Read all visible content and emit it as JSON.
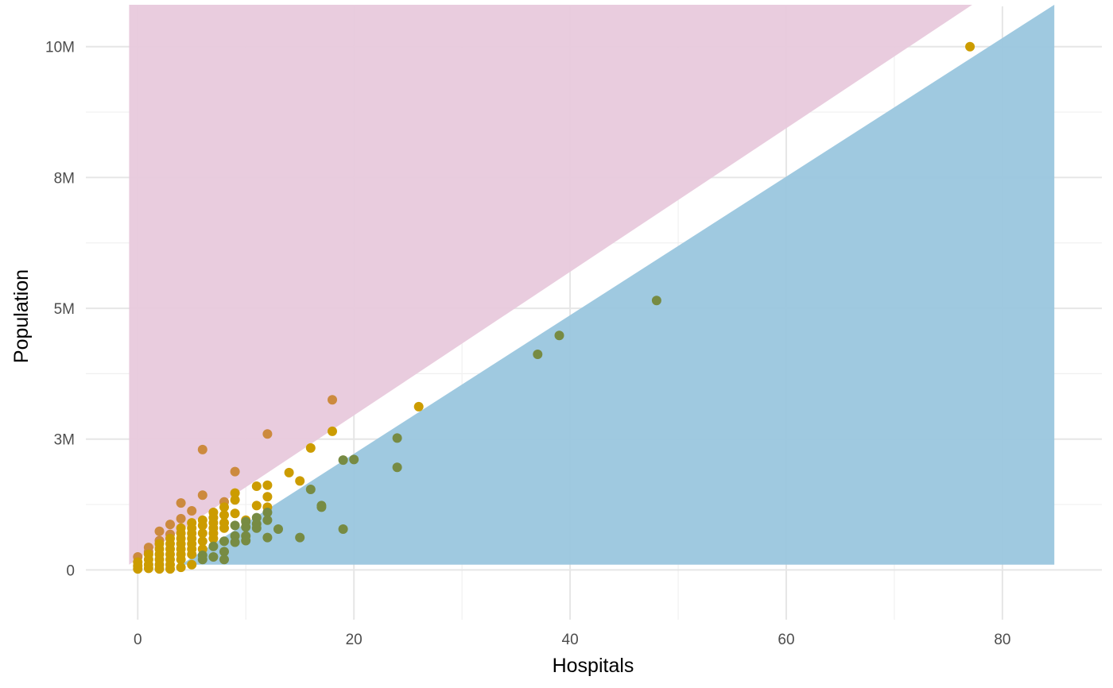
{
  "chart_data": {
    "type": "scatter",
    "title": "",
    "xlabel": "Hospitals",
    "ylabel": "Population",
    "xlim": [
      -4.8,
      89.2
    ],
    "ylim": [
      -950000,
      10770000
    ],
    "x_ticks": [
      0,
      20,
      40,
      60,
      80
    ],
    "x_tick_labels": [
      "0",
      "20",
      "40",
      "60",
      "80"
    ],
    "y_ticks": [
      0,
      2500000,
      5000000,
      7500000,
      10000000
    ],
    "y_tick_labels": [
      "0",
      "3M",
      "5M",
      "8M",
      "10M"
    ],
    "grid": true,
    "legend": "none",
    "colors": {
      "upper_region": "#e8c9dc",
      "lower_region": "#9ac6de",
      "point_above": "#cc8a3e",
      "point_mid": "#cc9c00",
      "point_below": "#778b43",
      "background": "#ffffff"
    },
    "regions": [
      {
        "name": "upper",
        "polygon": [
          [
            -0.8,
            10800000
          ],
          [
            77.2,
            10800000
          ],
          [
            -0.8,
            100000
          ]
        ]
      },
      {
        "name": "lower",
        "polygon": [
          [
            4,
            100000
          ],
          [
            84.8,
            10800000
          ],
          [
            84.8,
            100000
          ]
        ]
      }
    ],
    "series": [
      {
        "group": "above",
        "points": [
          [
            18,
            3250000
          ],
          [
            12,
            2600000
          ],
          [
            6,
            2300000
          ],
          [
            9,
            1880000
          ],
          [
            4,
            1280000
          ],
          [
            8,
            1300000
          ],
          [
            6,
            1430000
          ],
          [
            5,
            1130000
          ],
          [
            3,
            870000
          ],
          [
            4,
            980000
          ],
          [
            2,
            740000
          ],
          [
            3,
            680000
          ],
          [
            2,
            560000
          ],
          [
            1,
            430000
          ],
          [
            1,
            350000
          ],
          [
            0,
            250000
          ]
        ]
      },
      {
        "group": "middle",
        "points": [
          [
            77,
            10000000
          ],
          [
            26,
            3120000
          ],
          [
            18,
            2650000
          ],
          [
            16,
            2330000
          ],
          [
            15,
            1700000
          ],
          [
            14,
            1860000
          ],
          [
            12,
            1620000
          ],
          [
            12,
            1400000
          ],
          [
            11,
            1600000
          ],
          [
            11,
            1230000
          ],
          [
            12,
            1200000
          ],
          [
            10,
            950000
          ],
          [
            9,
            1470000
          ],
          [
            9,
            1340000
          ],
          [
            9,
            1080000
          ],
          [
            8,
            1200000
          ],
          [
            8,
            1050000
          ],
          [
            8,
            900000
          ],
          [
            8,
            800000
          ],
          [
            7,
            1100000
          ],
          [
            7,
            1000000
          ],
          [
            7,
            900000
          ],
          [
            7,
            800000
          ],
          [
            7,
            700000
          ],
          [
            7,
            600000
          ],
          [
            6,
            950000
          ],
          [
            6,
            850000
          ],
          [
            6,
            700000
          ],
          [
            6,
            550000
          ],
          [
            6,
            400000
          ],
          [
            5,
            900000
          ],
          [
            5,
            800000
          ],
          [
            5,
            700000
          ],
          [
            5,
            600000
          ],
          [
            5,
            500000
          ],
          [
            5,
            400000
          ],
          [
            5,
            300000
          ],
          [
            5,
            100000
          ],
          [
            4,
            800000
          ],
          [
            4,
            700000
          ],
          [
            4,
            600000
          ],
          [
            4,
            500000
          ],
          [
            4,
            400000
          ],
          [
            4,
            300000
          ],
          [
            4,
            200000
          ],
          [
            4,
            50000
          ],
          [
            3,
            600000
          ],
          [
            3,
            500000
          ],
          [
            3,
            400000
          ],
          [
            3,
            300000
          ],
          [
            3,
            200000
          ],
          [
            3,
            100000
          ],
          [
            3,
            20000
          ],
          [
            2,
            500000
          ],
          [
            2,
            400000
          ],
          [
            2,
            300000
          ],
          [
            2,
            200000
          ],
          [
            2,
            100000
          ],
          [
            2,
            20000
          ],
          [
            1,
            300000
          ],
          [
            1,
            200000
          ],
          [
            1,
            100000
          ],
          [
            1,
            30000
          ],
          [
            0,
            150000
          ],
          [
            0,
            80000
          ],
          [
            0,
            20000
          ]
        ]
      },
      {
        "group": "below",
        "points": [
          [
            48,
            5150000
          ],
          [
            39,
            4480000
          ],
          [
            37,
            4120000
          ],
          [
            24,
            2520000
          ],
          [
            24,
            1960000
          ],
          [
            20,
            2110000
          ],
          [
            19,
            2100000
          ],
          [
            19,
            780000
          ],
          [
            17,
            1230000
          ],
          [
            17,
            1200000
          ],
          [
            16,
            1540000
          ],
          [
            15,
            620000
          ],
          [
            13,
            780000
          ],
          [
            12,
            1100000
          ],
          [
            12,
            950000
          ],
          [
            12,
            620000
          ],
          [
            11,
            1000000
          ],
          [
            11,
            880000
          ],
          [
            11,
            800000
          ],
          [
            10,
            920000
          ],
          [
            10,
            820000
          ],
          [
            10,
            650000
          ],
          [
            10,
            560000
          ],
          [
            9,
            850000
          ],
          [
            9,
            650000
          ],
          [
            9,
            530000
          ],
          [
            8,
            550000
          ],
          [
            8,
            350000
          ],
          [
            8,
            200000
          ],
          [
            7,
            450000
          ],
          [
            7,
            250000
          ],
          [
            6,
            280000
          ],
          [
            6,
            200000
          ]
        ]
      }
    ]
  }
}
